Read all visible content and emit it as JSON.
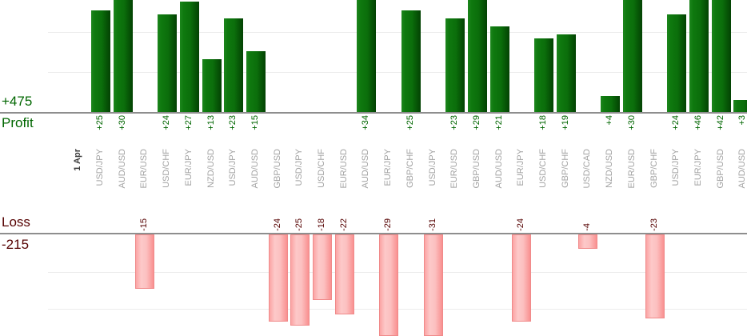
{
  "summary": {
    "profit_total": "+475",
    "profit_label": "Profit",
    "loss_label": "Loss",
    "loss_total": "-215"
  },
  "colors": {
    "profit_text_green": "#006600",
    "loss_text_maroon": "#550000",
    "pair_label_gray": "#a3a3a3",
    "date_label_dark": "#3b3b3b",
    "axis_line_gray": "#8e8e8e",
    "gridline_gray": "#ececec",
    "profit_bar_gradient": [
      "#1d861d",
      "#0b6e0b",
      "#034203"
    ],
    "loss_bar_gradient": [
      "#fba4a4",
      "#fdc9c9",
      "#f99090"
    ],
    "loss_bar_border": "#f08a8a"
  },
  "chart_data": {
    "type": "bar",
    "title": "",
    "date_label": "1 Apr",
    "categories": [
      "USD/JPY",
      "AUD/USD",
      "EUR/USD",
      "USD/CHF",
      "EUR/JPY",
      "NZD/USD",
      "USD/JPY",
      "AUD/USD",
      "GBP/USD",
      "USD/JPY",
      "USD/CHF",
      "EUR/USD",
      "AUD/USD",
      "EUR/JPY",
      "GBP/CHF",
      "USD/JPY",
      "EUR/USD",
      "GBP/USD",
      "AUD/USD",
      "EUR/JPY",
      "USD/CHF",
      "GBP/CHF",
      "USD/CAD",
      "NZD/USD",
      "EUR/USD",
      "GBP/CHF",
      "USD/JPY",
      "EUR/JPY",
      "GBP/USD",
      "AUD/USD"
    ],
    "values": [
      25,
      30,
      -15,
      24,
      27,
      13,
      23,
      15,
      -24,
      -25,
      -18,
      -22,
      34,
      -29,
      25,
      -31,
      23,
      29,
      21,
      -24,
      18,
      19,
      -4,
      4,
      30,
      -23,
      24,
      46,
      42,
      3
    ],
    "positive_prefix": "+",
    "profit_axis": {
      "label": "Profit",
      "total": 475,
      "gridline_step": 10,
      "visible_max": 27.5
    },
    "loss_axis": {
      "label": "Loss",
      "total": -215,
      "gridline_step": 10,
      "visible_min": -27.9
    },
    "legend": "none",
    "grid": true
  }
}
